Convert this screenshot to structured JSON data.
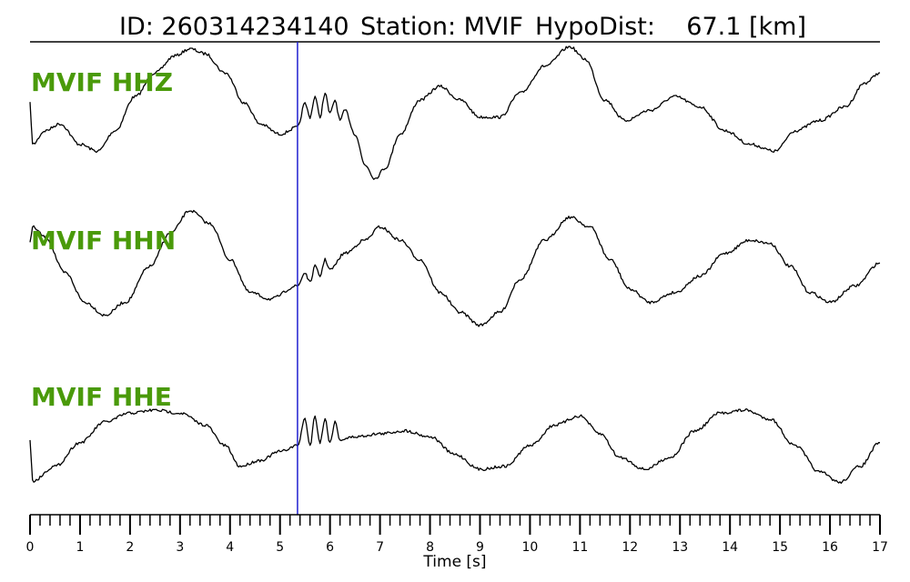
{
  "header": {
    "id_text": "ID: 260314234140",
    "station_text": "Station: MVIF",
    "dist_text": "HypoDist:    67.1 [km]"
  },
  "chart_data": {
    "type": "line",
    "xlabel": "Time [s]",
    "xlim": [
      0,
      17
    ],
    "x_ticks": [
      0,
      1,
      2,
      3,
      4,
      5,
      6,
      7,
      8,
      9,
      10,
      11,
      12,
      13,
      14,
      15,
      16,
      17
    ],
    "minor_tick_step": 0.2,
    "pick_time": 5.35,
    "pick_color": "#1f1fd0",
    "trace_color": "#000000",
    "label_color": "#4a9a0a",
    "grid": false,
    "normalized_amplitude": true,
    "series": [
      {
        "name": "MVIF HHZ",
        "points": [
          [
            0,
            0.15
          ],
          [
            0.05,
            -0.45
          ],
          [
            0.3,
            -0.25
          ],
          [
            0.6,
            -0.15
          ],
          [
            1.0,
            -0.45
          ],
          [
            1.35,
            -0.55
          ],
          [
            1.7,
            -0.25
          ],
          [
            2.1,
            0.25
          ],
          [
            2.5,
            0.6
          ],
          [
            2.9,
            0.85
          ],
          [
            3.2,
            0.95
          ],
          [
            3.5,
            0.88
          ],
          [
            3.9,
            0.6
          ],
          [
            4.3,
            0.15
          ],
          [
            4.6,
            -0.15
          ],
          [
            5.0,
            -0.3
          ],
          [
            5.35,
            -0.2
          ],
          [
            5.5,
            0.15
          ],
          [
            5.6,
            -0.05
          ],
          [
            5.7,
            0.25
          ],
          [
            5.8,
            -0.05
          ],
          [
            5.9,
            0.3
          ],
          [
            6.0,
            0.0
          ],
          [
            6.1,
            0.2
          ],
          [
            6.2,
            -0.1
          ],
          [
            6.3,
            0.05
          ],
          [
            6.5,
            -0.3
          ],
          [
            6.7,
            -0.75
          ],
          [
            6.9,
            -0.95
          ],
          [
            7.1,
            -0.8
          ],
          [
            7.4,
            -0.3
          ],
          [
            7.8,
            0.2
          ],
          [
            8.2,
            0.4
          ],
          [
            8.6,
            0.2
          ],
          [
            9.0,
            -0.05
          ],
          [
            9.4,
            -0.05
          ],
          [
            9.8,
            0.3
          ],
          [
            10.3,
            0.7
          ],
          [
            10.8,
            0.98
          ],
          [
            11.1,
            0.8
          ],
          [
            11.5,
            0.2
          ],
          [
            11.9,
            -0.1
          ],
          [
            12.4,
            0.05
          ],
          [
            12.9,
            0.25
          ],
          [
            13.4,
            0.1
          ],
          [
            13.9,
            -0.25
          ],
          [
            14.4,
            -0.45
          ],
          [
            14.9,
            -0.55
          ],
          [
            15.3,
            -0.25
          ],
          [
            15.8,
            -0.1
          ],
          [
            16.3,
            0.1
          ],
          [
            16.7,
            0.45
          ],
          [
            17,
            0.6
          ]
        ]
      },
      {
        "name": "MVIF HHN",
        "points": [
          [
            0,
            0.45
          ],
          [
            0.05,
            0.7
          ],
          [
            0.3,
            0.55
          ],
          [
            0.7,
            0.0
          ],
          [
            1.1,
            -0.45
          ],
          [
            1.5,
            -0.65
          ],
          [
            1.9,
            -0.45
          ],
          [
            2.4,
            0.1
          ],
          [
            2.8,
            0.6
          ],
          [
            3.2,
            0.95
          ],
          [
            3.6,
            0.75
          ],
          [
            4.0,
            0.2
          ],
          [
            4.4,
            -0.3
          ],
          [
            4.8,
            -0.4
          ],
          [
            5.35,
            -0.2
          ],
          [
            5.5,
            0.0
          ],
          [
            5.6,
            -0.15
          ],
          [
            5.7,
            0.1
          ],
          [
            5.8,
            -0.05
          ],
          [
            5.9,
            0.2
          ],
          [
            6.0,
            0.05
          ],
          [
            6.3,
            0.3
          ],
          [
            6.7,
            0.5
          ],
          [
            7.0,
            0.7
          ],
          [
            7.4,
            0.5
          ],
          [
            7.8,
            0.2
          ],
          [
            8.2,
            -0.3
          ],
          [
            8.6,
            -0.6
          ],
          [
            9.0,
            -0.8
          ],
          [
            9.4,
            -0.6
          ],
          [
            9.8,
            -0.1
          ],
          [
            10.3,
            0.5
          ],
          [
            10.8,
            0.85
          ],
          [
            11.2,
            0.7
          ],
          [
            11.6,
            0.2
          ],
          [
            12.0,
            -0.25
          ],
          [
            12.4,
            -0.45
          ],
          [
            12.9,
            -0.3
          ],
          [
            13.4,
            -0.05
          ],
          [
            13.9,
            0.3
          ],
          [
            14.4,
            0.5
          ],
          [
            14.8,
            0.45
          ],
          [
            15.2,
            0.1
          ],
          [
            15.6,
            -0.3
          ],
          [
            16.0,
            -0.45
          ],
          [
            16.5,
            -0.2
          ],
          [
            17,
            0.15
          ]
        ]
      },
      {
        "name": "MVIF HHE",
        "points": [
          [
            0,
            0.1
          ],
          [
            0.05,
            -0.6
          ],
          [
            0.5,
            -0.35
          ],
          [
            1.0,
            0.05
          ],
          [
            1.5,
            0.4
          ],
          [
            2.0,
            0.55
          ],
          [
            2.5,
            0.6
          ],
          [
            3.0,
            0.55
          ],
          [
            3.5,
            0.35
          ],
          [
            3.9,
            0.0
          ],
          [
            4.2,
            -0.35
          ],
          [
            4.6,
            -0.25
          ],
          [
            5.0,
            -0.1
          ],
          [
            5.35,
            0.0
          ],
          [
            5.5,
            0.45
          ],
          [
            5.6,
            0.0
          ],
          [
            5.7,
            0.5
          ],
          [
            5.8,
            0.05
          ],
          [
            5.9,
            0.45
          ],
          [
            6.0,
            0.05
          ],
          [
            6.1,
            0.4
          ],
          [
            6.2,
            0.1
          ],
          [
            6.5,
            0.15
          ],
          [
            7.0,
            0.2
          ],
          [
            7.5,
            0.25
          ],
          [
            8.0,
            0.15
          ],
          [
            8.5,
            -0.15
          ],
          [
            9.0,
            -0.4
          ],
          [
            9.5,
            -0.35
          ],
          [
            10.0,
            0.0
          ],
          [
            10.5,
            0.35
          ],
          [
            11.0,
            0.5
          ],
          [
            11.4,
            0.2
          ],
          [
            11.8,
            -0.2
          ],
          [
            12.3,
            -0.4
          ],
          [
            12.8,
            -0.2
          ],
          [
            13.3,
            0.25
          ],
          [
            13.8,
            0.55
          ],
          [
            14.3,
            0.6
          ],
          [
            14.8,
            0.45
          ],
          [
            15.3,
            0.0
          ],
          [
            15.8,
            -0.45
          ],
          [
            16.2,
            -0.62
          ],
          [
            16.6,
            -0.35
          ],
          [
            17,
            0.05
          ]
        ]
      }
    ]
  }
}
